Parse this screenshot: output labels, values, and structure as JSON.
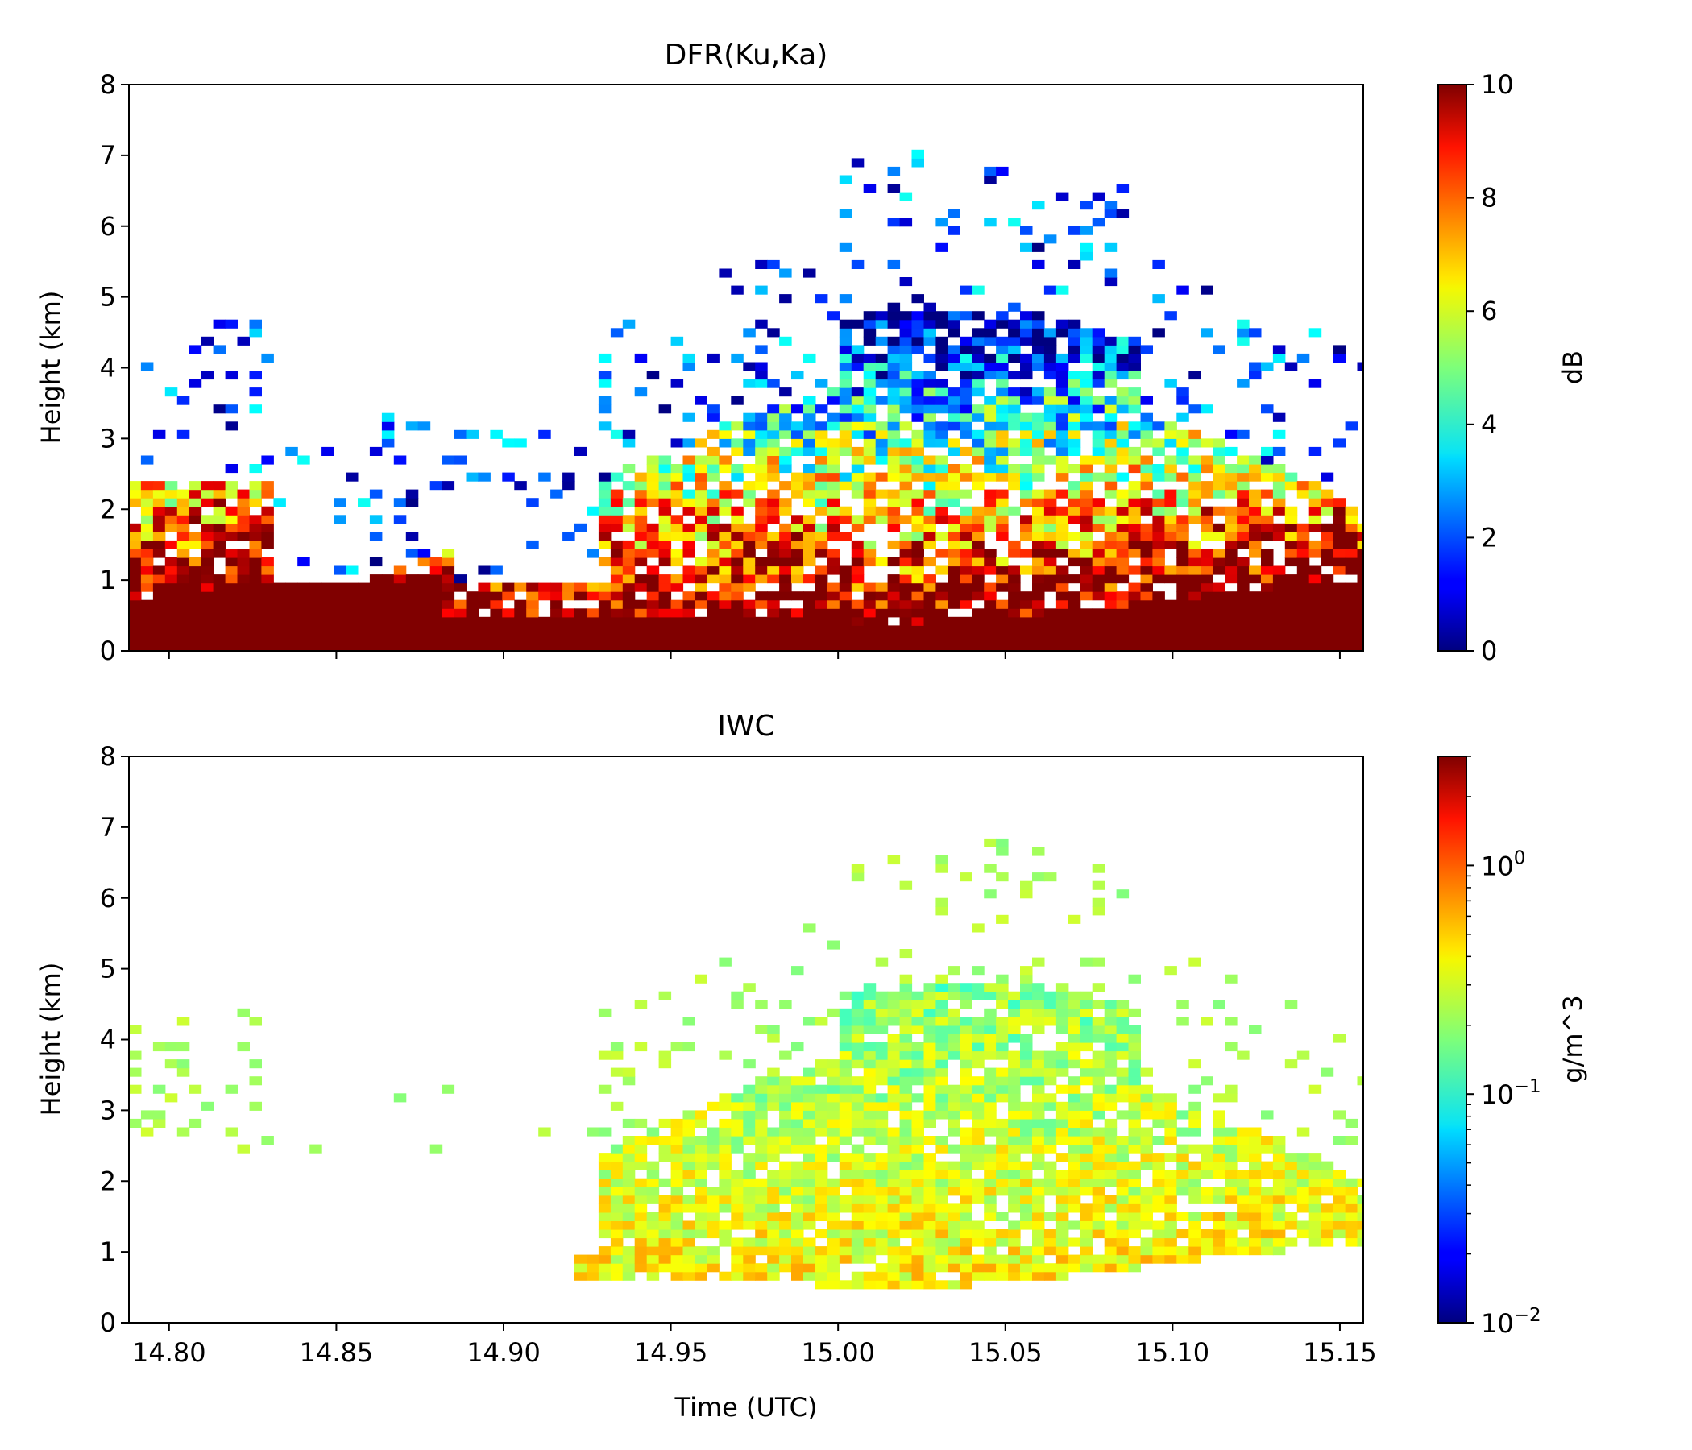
{
  "chart_data": [
    {
      "type": "heatmap",
      "title": "DFR(Ku,Ka)",
      "xlabel": "",
      "ylabel": "Height (km)",
      "xlim": [
        14.788,
        15.157
      ],
      "ylim": [
        0,
        8
      ],
      "x_ticks": [
        14.8,
        14.85,
        14.9,
        14.95,
        15.0,
        15.05,
        15.1,
        15.15
      ],
      "y_ticks": [
        0,
        1,
        2,
        3,
        4,
        5,
        6,
        7,
        8
      ],
      "y_tick_labels": [
        "0",
        "1",
        "2",
        "3",
        "4",
        "5",
        "6",
        "7",
        "8"
      ],
      "colormap": "jet",
      "colorbar": {
        "label": "dB",
        "scale": "linear",
        "range": [
          0,
          10
        ],
        "ticks": [
          0,
          2,
          4,
          6,
          8,
          10
        ],
        "tick_labels": [
          "0",
          "2",
          "4",
          "6",
          "8",
          "10"
        ]
      },
      "grid": false
    },
    {
      "type": "heatmap",
      "title": "IWC",
      "xlabel": "Time (UTC)",
      "ylabel": "Height (km)",
      "xlim": [
        14.788,
        15.157
      ],
      "ylim": [
        0,
        8
      ],
      "x_ticks": [
        14.8,
        14.85,
        14.9,
        14.95,
        15.0,
        15.05,
        15.1,
        15.15
      ],
      "x_tick_labels": [
        "14.80",
        "14.85",
        "14.90",
        "14.95",
        "15.00",
        "15.05",
        "15.10",
        "15.15"
      ],
      "y_ticks": [
        0,
        1,
        2,
        3,
        4,
        5,
        6,
        7,
        8
      ],
      "y_tick_labels": [
        "0",
        "1",
        "2",
        "3",
        "4",
        "5",
        "6",
        "7",
        "8"
      ],
      "colormap": "jet",
      "colorbar": {
        "label": "g/m^3",
        "scale": "log",
        "range": [
          0.01,
          3
        ],
        "ticks": [
          0.01,
          0.1,
          1
        ],
        "tick_labels": [
          {
            "base": "10",
            "exp": "−2"
          },
          {
            "base": "10",
            "exp": "−1"
          },
          {
            "base": "10",
            "exp": "0"
          }
        ]
      },
      "grid": false
    }
  ]
}
